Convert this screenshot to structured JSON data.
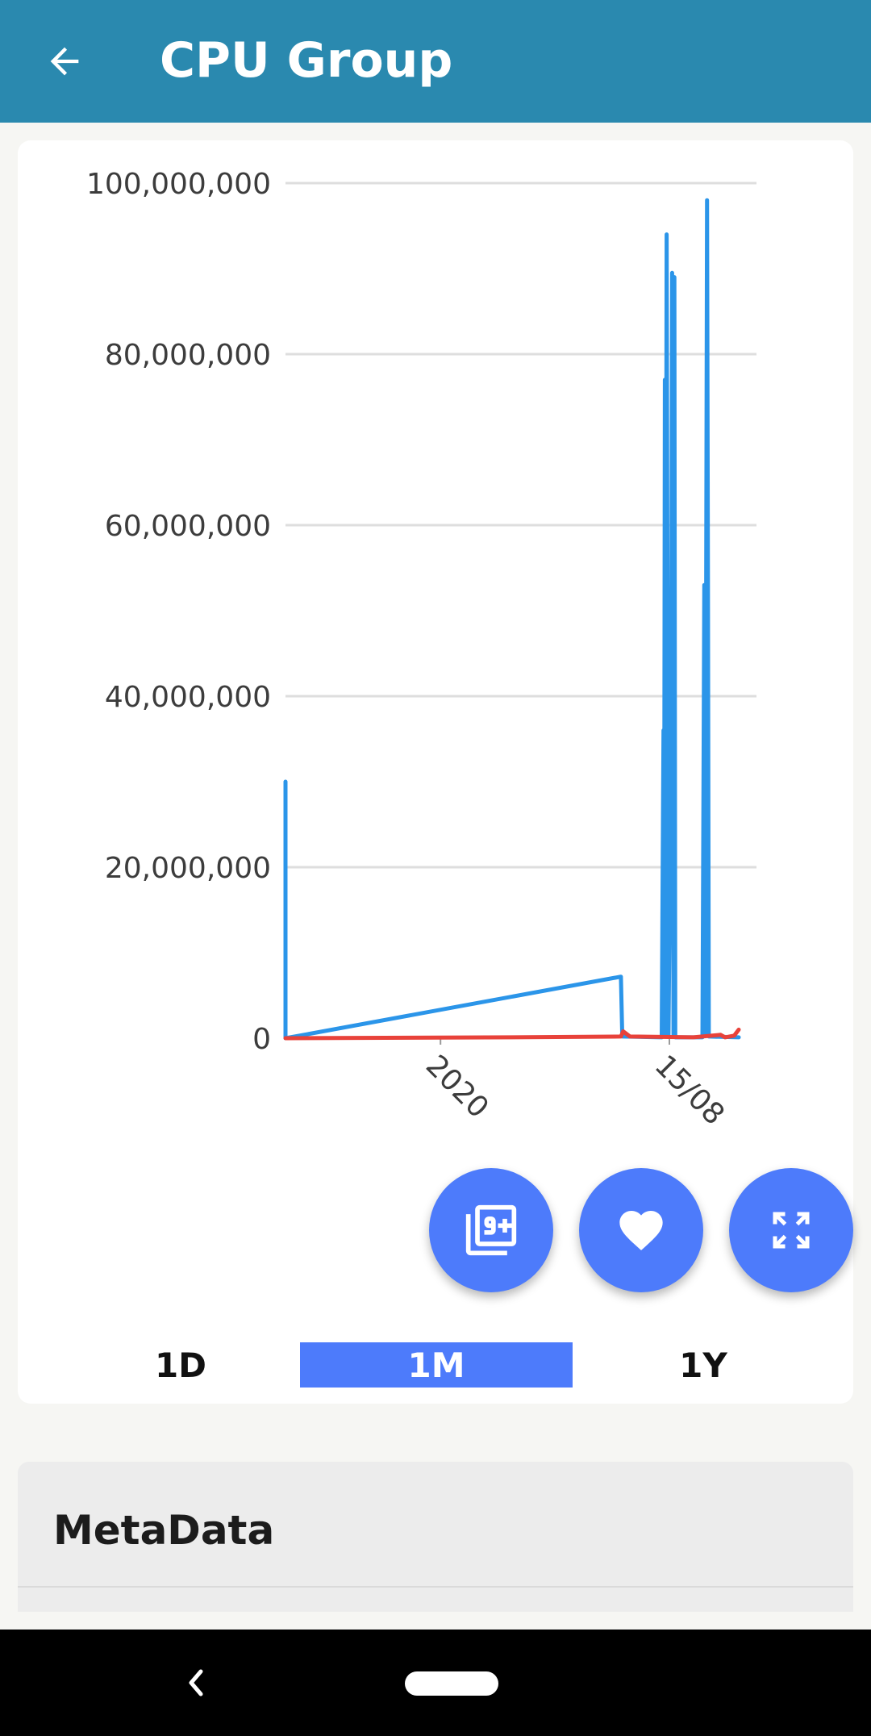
{
  "appbar": {
    "title": "CPU Group",
    "back_icon": "arrow-back-icon",
    "color": "#2a89af"
  },
  "chart_data": {
    "type": "line",
    "title": "",
    "xlabel": "",
    "ylabel": "",
    "ylim": [
      0,
      100000000
    ],
    "y_ticks": [
      0,
      20000000,
      40000000,
      60000000,
      80000000,
      100000000
    ],
    "y_tick_labels": [
      "0",
      "20,000,000",
      "40,000,000",
      "60,000,000",
      "80,000,000",
      "100,000,000"
    ],
    "x_ticks": [
      0.342,
      0.847
    ],
    "x_tick_labels": [
      "2020",
      "15/08"
    ],
    "grid": true,
    "series": [
      {
        "color": "#2b95e9",
        "points": [
          [
            0.0,
            30000000
          ],
          [
            0.0,
            0
          ],
          [
            0.74,
            7200000
          ],
          [
            0.743,
            200000
          ],
          [
            0.83,
            100000
          ],
          [
            0.834,
            36000000
          ],
          [
            0.835,
            300000
          ],
          [
            0.837,
            77000000
          ],
          [
            0.838,
            500000
          ],
          [
            0.841,
            94000000
          ],
          [
            0.845,
            300000
          ],
          [
            0.851,
            37000000
          ],
          [
            0.853,
            89500000
          ],
          [
            0.856,
            200000
          ],
          [
            0.858,
            89000000
          ],
          [
            0.86,
            100000
          ],
          [
            0.92,
            100000
          ],
          [
            0.924,
            53000000
          ],
          [
            0.926,
            300000
          ],
          [
            0.93,
            98000000
          ],
          [
            0.932,
            54000000
          ],
          [
            0.934,
            200000
          ],
          [
            1.0,
            100000
          ]
        ]
      },
      {
        "color": "#e8423a",
        "points": [
          [
            0.0,
            0
          ],
          [
            0.5,
            100000
          ],
          [
            0.74,
            200000
          ],
          [
            0.745,
            800000
          ],
          [
            0.76,
            200000
          ],
          [
            0.83,
            150000
          ],
          [
            0.9,
            100000
          ],
          [
            0.96,
            400000
          ],
          [
            0.97,
            100000
          ],
          [
            0.99,
            300000
          ],
          [
            1.0,
            1000000
          ]
        ]
      }
    ]
  },
  "fabs": {
    "count_icon": "filter-9-plus-icon",
    "favorite_icon": "heart-icon",
    "fullscreen_icon": "fullscreen-icon",
    "color": "#4d7bfb"
  },
  "ranges": {
    "day": "1D",
    "month": "1M",
    "year": "1Y",
    "active": "1M"
  },
  "metadata": {
    "title": "MetaData"
  }
}
